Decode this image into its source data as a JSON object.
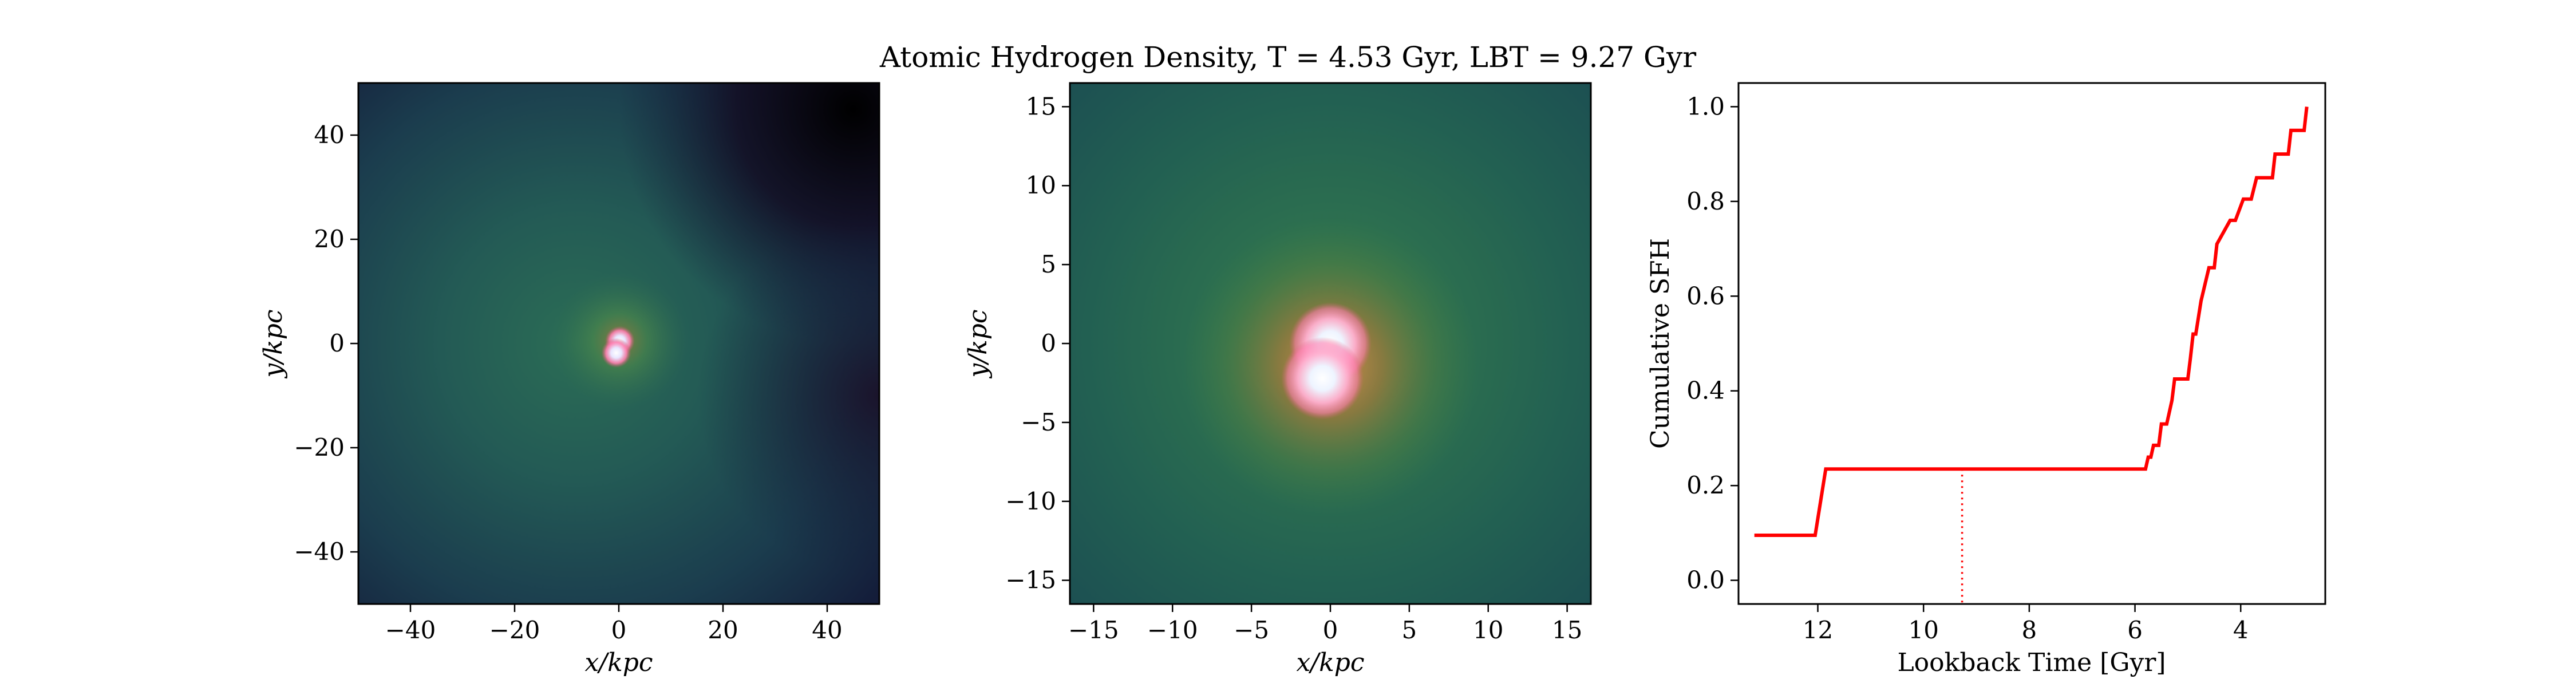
{
  "title": "Atomic Hydrogen Density, T = 4.53 Gyr, LBT = 9.27 Gyr",
  "colors": {
    "line": "#ff0000",
    "map_dark": "#0f1530",
    "map_teal": "#235a55",
    "map_green": "#3a7a50",
    "core_pink": "#ff7fb0",
    "core_white": "#f0f8ff"
  },
  "chart_data": [
    {
      "type": "heatmap",
      "name": "wide-map",
      "xlabel": "x/kpc",
      "ylabel": "y/kpc",
      "xlim": [
        -50,
        50
      ],
      "ylim": [
        -50,
        50
      ],
      "xticks": [
        -40,
        -20,
        0,
        20,
        40
      ],
      "yticks": [
        -40,
        -20,
        0,
        20,
        40
      ],
      "xticklabels": [
        "−40",
        "−20",
        "0",
        "20",
        "40"
      ],
      "yticklabels": [
        "−40",
        "−20",
        "0",
        "20",
        "40"
      ],
      "sources": [
        {
          "x": 0.2,
          "y": 0.5
        },
        {
          "x": -0.5,
          "y": -1.8
        }
      ]
    },
    {
      "type": "heatmap",
      "name": "zoom-map",
      "xlabel": "x/kpc",
      "ylabel": "y/kpc",
      "xlim": [
        -16.5,
        16.5
      ],
      "ylim": [
        -16.5,
        16.5
      ],
      "xticks": [
        -15,
        -10,
        -5,
        0,
        5,
        10,
        15
      ],
      "yticks": [
        -15,
        -10,
        -5,
        0,
        5,
        10,
        15
      ],
      "xticklabels": [
        "−15",
        "−10",
        "−5",
        "0",
        "5",
        "10",
        "15"
      ],
      "yticklabels": [
        "−15",
        "−10",
        "−5",
        "0",
        "5",
        "10",
        "15"
      ],
      "sources": [
        {
          "x": 0.0,
          "y": 0.0
        },
        {
          "x": -0.5,
          "y": -2.2
        }
      ]
    },
    {
      "type": "line",
      "name": "cumulative-sfh",
      "xlabel": "Lookback Time [Gyr]",
      "ylabel": "Cumulative SFH",
      "xlim": [
        13.5,
        2.4
      ],
      "ylim": [
        -0.05,
        1.05
      ],
      "xticks": [
        12,
        10,
        8,
        6,
        4
      ],
      "yticks": [
        0.0,
        0.2,
        0.4,
        0.6,
        0.8,
        1.0
      ],
      "xticklabels": [
        "12",
        "10",
        "8",
        "6",
        "4"
      ],
      "yticklabels": [
        "0.0",
        "0.2",
        "0.4",
        "0.6",
        "0.8",
        "1.0"
      ],
      "marker_line_x": 9.27,
      "marker_line_top": 0.235,
      "x": [
        13.2,
        12.05,
        11.85,
        5.8,
        5.75,
        5.7,
        5.65,
        5.55,
        5.5,
        5.4,
        5.3,
        5.25,
        5.0,
        4.95,
        4.9,
        4.85,
        4.75,
        4.6,
        4.55,
        4.5,
        4.45,
        4.2,
        4.15,
        4.1,
        3.95,
        3.9,
        3.8,
        3.7,
        3.65,
        3.55,
        3.4,
        3.35,
        3.2,
        3.1,
        3.05,
        2.95,
        2.8,
        2.75
      ],
      "y": [
        0.095,
        0.095,
        0.235,
        0.235,
        0.26,
        0.26,
        0.285,
        0.285,
        0.33,
        0.33,
        0.38,
        0.425,
        0.425,
        0.47,
        0.52,
        0.52,
        0.59,
        0.66,
        0.66,
        0.66,
        0.71,
        0.76,
        0.76,
        0.76,
        0.805,
        0.805,
        0.805,
        0.85,
        0.85,
        0.85,
        0.85,
        0.9,
        0.9,
        0.9,
        0.95,
        0.95,
        0.95,
        1.0
      ]
    }
  ]
}
